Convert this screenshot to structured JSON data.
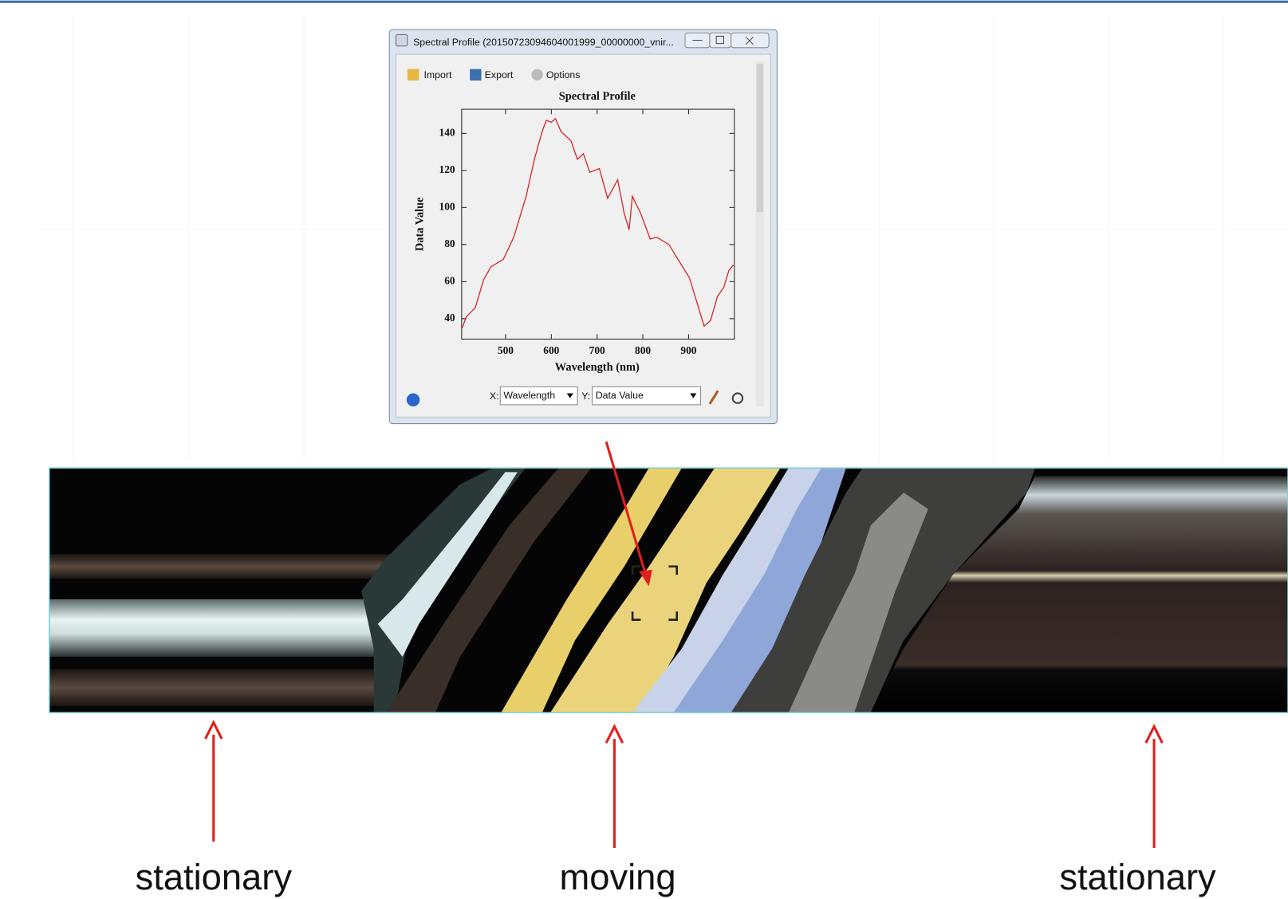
{
  "window": {
    "title": "Spectral Profile (20150723094604001999_00000000_vnir...",
    "menu": [
      "Import",
      "Export",
      "Options"
    ]
  },
  "chart_data": {
    "type": "line",
    "title": "Spectral Profile",
    "x_label": "Wavelength (nm)",
    "y_label": "Data Value",
    "x": [
      405,
      414,
      434,
      452,
      468,
      495,
      518,
      545,
      563,
      580,
      589,
      600,
      609,
      621,
      643,
      657,
      670,
      684,
      705,
      723,
      745,
      759,
      770,
      777,
      795,
      816,
      830,
      857,
      902,
      934,
      948,
      963,
      977,
      988,
      998
    ],
    "values": [
      35,
      41,
      46,
      61,
      68,
      72,
      84,
      106,
      126,
      141,
      147,
      146,
      148,
      141,
      136,
      126,
      129,
      119,
      121,
      105,
      115,
      97,
      88,
      106,
      97,
      83,
      84,
      80,
      62,
      36,
      39,
      52,
      57,
      66,
      69
    ],
    "color": "#d42a2a",
    "xlim": [
      404,
      1000
    ],
    "ylim": [
      29,
      153
    ],
    "xticks": [
      500,
      600,
      700,
      800,
      900
    ],
    "yticks": [
      40,
      60,
      80,
      100,
      120,
      140
    ],
    "grid": false
  },
  "controls": {
    "x_prefix": "X:",
    "x_select": "Wavelength",
    "y_prefix": "Y:",
    "y_select": "Data Value"
  },
  "annotations": [
    "stationary",
    "moving",
    "stationary"
  ]
}
